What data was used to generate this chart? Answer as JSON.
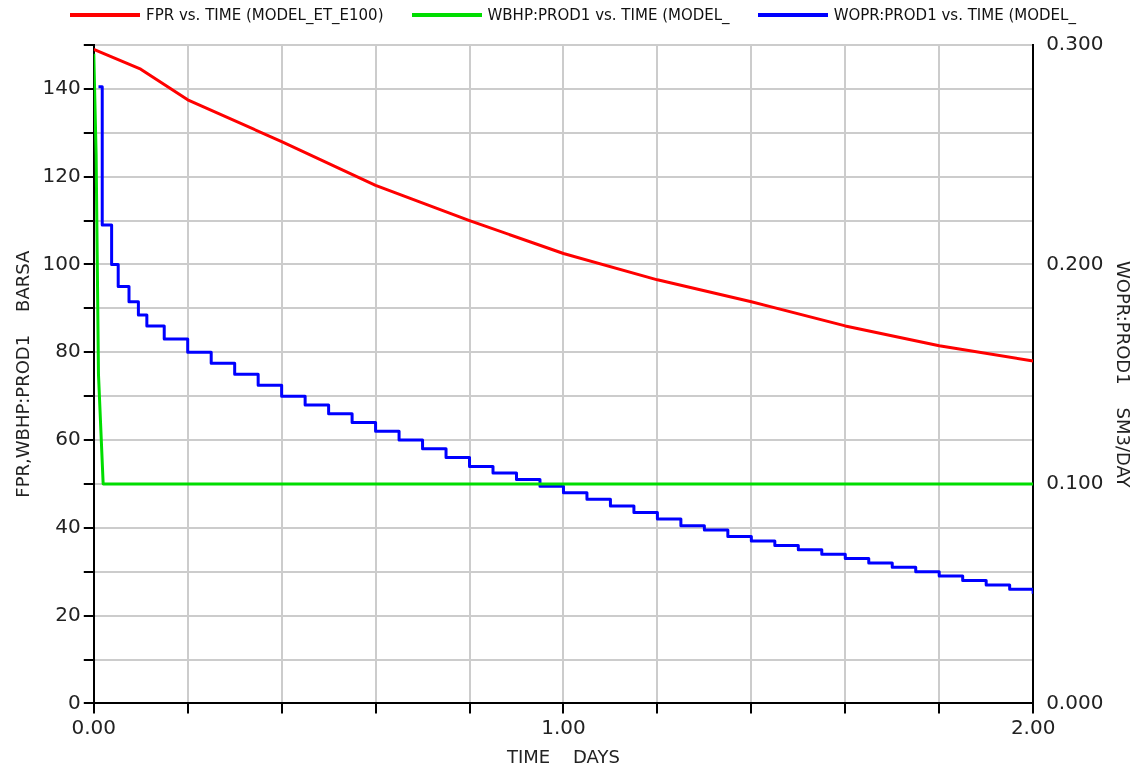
{
  "chart_data": {
    "type": "line",
    "xlabel": "TIME    DAYS",
    "ylabel": "FPR,WBHP:PROD1    BARSA",
    "y2label": "WOPR:PROD1    SM3/DAY",
    "xlim": [
      0,
      2
    ],
    "xticks": [
      {
        "value": 0,
        "label": "0.00"
      },
      {
        "value": 0.2,
        "label": null
      },
      {
        "value": 0.4,
        "label": null
      },
      {
        "value": 0.6,
        "label": null
      },
      {
        "value": 0.8,
        "label": null
      },
      {
        "value": 1,
        "label": "1.00"
      },
      {
        "value": 1.2,
        "label": null
      },
      {
        "value": 1.4,
        "label": null
      },
      {
        "value": 1.6,
        "label": null
      },
      {
        "value": 1.8,
        "label": null
      },
      {
        "value": 2,
        "label": "2.00"
      }
    ],
    "ylim": [
      0,
      150
    ],
    "yticks": [
      0,
      {
        "value": 10,
        "label": null
      },
      20,
      {
        "value": 30,
        "label": null
      },
      40,
      {
        "value": 50,
        "label": null
      },
      60,
      {
        "value": 70,
        "label": null
      },
      80,
      {
        "value": 90,
        "label": null
      },
      100,
      {
        "value": 110,
        "label": null
      },
      120,
      {
        "value": 130,
        "label": null
      },
      140,
      {
        "value": 150,
        "label": null
      }
    ],
    "y2lim": [
      0,
      0.3
    ],
    "y2ticks": [
      {
        "value": 0,
        "label": "0.000"
      },
      {
        "value": 0.02,
        "label": null
      },
      {
        "value": 0.04,
        "label": null
      },
      {
        "value": 0.06,
        "label": null
      },
      {
        "value": 0.08,
        "label": null
      },
      {
        "value": 0.1,
        "label": "0.100"
      },
      {
        "value": 0.12,
        "label": null
      },
      {
        "value": 0.14,
        "label": null
      },
      {
        "value": 0.16,
        "label": null
      },
      {
        "value": 0.18,
        "label": null
      },
      {
        "value": 0.2,
        "label": "0.200"
      },
      {
        "value": 0.22,
        "label": null
      },
      {
        "value": 0.24,
        "label": null
      },
      {
        "value": 0.26,
        "label": null
      },
      {
        "value": 0.28,
        "label": null
      },
      {
        "value": 0.3,
        "label": "0.300"
      }
    ],
    "grid": true,
    "legend": "top",
    "marker": "none",
    "line_style": "solid",
    "series": [
      {
        "name": "FPR vs. TIME (MODEL_ET_E100)",
        "color": "#ff0000",
        "x": [
          0,
          0.1,
          0.2,
          0.4,
          0.6,
          0.8,
          1,
          1.2,
          1.4,
          1.6,
          1.8,
          2
        ],
        "values": [
          149,
          144.5,
          137.5,
          128,
          118,
          110,
          102.5,
          96.5,
          91.5,
          86,
          81.5,
          78
        ]
      },
      {
        "name": "WBHP:PROD1 vs. TIME (MODEL_",
        "color": "#00dd00",
        "x": [
          0,
          0.005,
          0.01,
          0.02,
          2
        ],
        "values": [
          148,
          125,
          75,
          50,
          50
        ]
      },
      {
        "name": "WOPR:PROD1 vs. TIME (MODEL_",
        "color": "#0000ff",
        "type": "step",
        "axis": "y2",
        "x": [
          0.01,
          0.018,
          0.038,
          0.052,
          0.075,
          0.095,
          0.113,
          0.15,
          0.2,
          0.25,
          0.3,
          0.35,
          0.4,
          0.45,
          0.5,
          0.55,
          0.6,
          0.65,
          0.7,
          0.75,
          0.8,
          0.85,
          0.9,
          0.95,
          1,
          1.05,
          1.1,
          1.15,
          1.2,
          1.25,
          1.3,
          1.35,
          1.4,
          1.45,
          1.5,
          1.55,
          1.6,
          1.65,
          1.7,
          1.75,
          1.8,
          1.85,
          1.9,
          1.95,
          2
        ],
        "values": [
          0.281,
          0.218,
          0.2,
          0.19,
          0.183,
          0.177,
          0.172,
          0.166,
          0.16,
          0.155,
          0.15,
          0.145,
          0.14,
          0.136,
          0.132,
          0.128,
          0.124,
          0.12,
          0.116,
          0.112,
          0.108,
          0.105,
          0.102,
          0.099,
          0.096,
          0.093,
          0.09,
          0.087,
          0.084,
          0.081,
          0.079,
          0.076,
          0.074,
          0.072,
          0.07,
          0.068,
          0.066,
          0.064,
          0.062,
          0.06,
          0.058,
          0.056,
          0.054,
          0.052,
          0.05
        ]
      }
    ]
  }
}
